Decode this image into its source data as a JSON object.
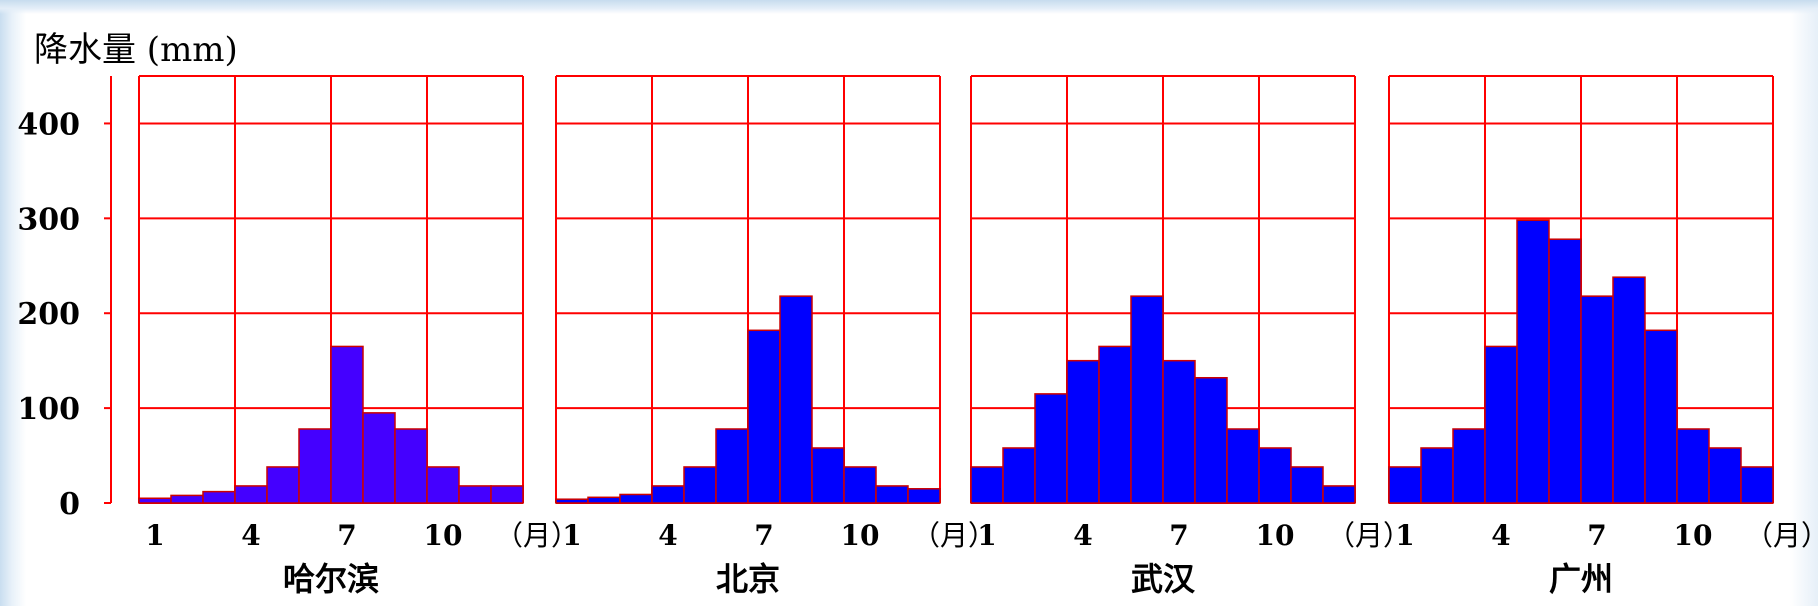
{
  "y_axis_label": "降水量 (mm)",
  "month_unit": "（月）",
  "colors": {
    "grid": "#ff0000",
    "bar_fill": "#0000ff",
    "bar_fill_harbin": "#4400ff",
    "bar_stroke": "#cc0000",
    "text": "#000000"
  },
  "chart_data": {
    "type": "bar",
    "ylabel": "降水量 (mm)",
    "xlabel": "（月）",
    "ylim": [
      0,
      450
    ],
    "y_ticks": [
      0,
      100,
      200,
      300,
      400
    ],
    "x_ticks": [
      1,
      4,
      7,
      10
    ],
    "months": [
      1,
      2,
      3,
      4,
      5,
      6,
      7,
      8,
      9,
      10,
      11,
      12
    ],
    "grid": true,
    "panels": [
      {
        "name": "哈尔滨",
        "values": [
          5,
          8,
          12,
          18,
          38,
          78,
          165,
          95,
          78,
          38,
          18,
          18
        ]
      },
      {
        "name": "北京",
        "values": [
          4,
          6,
          9,
          18,
          38,
          78,
          182,
          218,
          58,
          38,
          18,
          15
        ]
      },
      {
        "name": "武汉",
        "values": [
          38,
          58,
          115,
          150,
          165,
          218,
          150,
          132,
          78,
          58,
          38,
          18
        ]
      },
      {
        "name": "广州",
        "values": [
          38,
          58,
          78,
          165,
          298,
          278,
          218,
          238,
          182,
          78,
          58,
          38
        ]
      }
    ]
  }
}
